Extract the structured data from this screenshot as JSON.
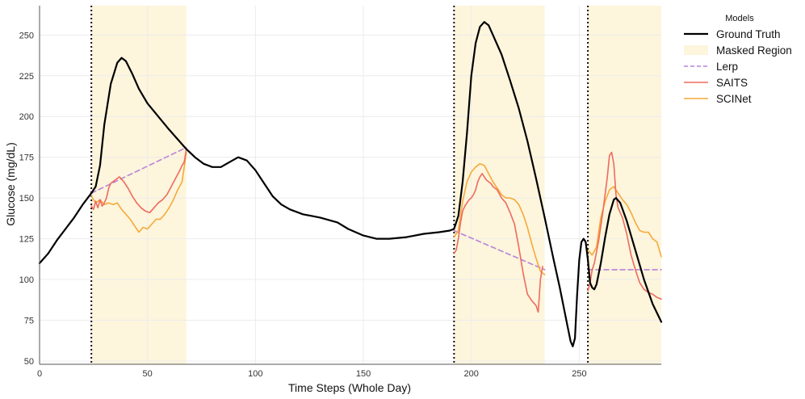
{
  "chart_data": {
    "type": "line",
    "title": "",
    "xlabel": "Time Steps (Whole Day)",
    "ylabel": "Glucose (mg/dL)",
    "xlim": [
      0,
      288
    ],
    "ylim": [
      48,
      268
    ],
    "x_ticks": [
      0,
      50,
      100,
      150,
      200,
      250
    ],
    "y_ticks": [
      50,
      75,
      100,
      125,
      150,
      175,
      200,
      225,
      250
    ],
    "grid": true,
    "legend": {
      "title": "Models",
      "position": "outside-right"
    },
    "mask_boundaries": [
      24,
      192,
      254
    ],
    "masked_regions": [
      [
        24,
        68
      ],
      [
        192,
        234
      ],
      [
        254,
        288
      ]
    ],
    "colors": {
      "ground_truth": "#000000",
      "masked_region": "#fdf5dc",
      "lerp": "#b784d8",
      "saits": "#ee6b5f",
      "scinet": "#f5aa3c"
    },
    "series": [
      {
        "name": "Ground Truth",
        "style": "solid",
        "points": [
          [
            0,
            110
          ],
          [
            4,
            116
          ],
          [
            8,
            124
          ],
          [
            12,
            131
          ],
          [
            16,
            138
          ],
          [
            20,
            146
          ],
          [
            24,
            153
          ],
          [
            26,
            157
          ],
          [
            28,
            170
          ],
          [
            30,
            195
          ],
          [
            33,
            220
          ],
          [
            36,
            233
          ],
          [
            38,
            236
          ],
          [
            40,
            234
          ],
          [
            43,
            226
          ],
          [
            46,
            217
          ],
          [
            50,
            208
          ],
          [
            55,
            200
          ],
          [
            60,
            192
          ],
          [
            64,
            186
          ],
          [
            68,
            180
          ],
          [
            72,
            175
          ],
          [
            76,
            171
          ],
          [
            80,
            169
          ],
          [
            84,
            169
          ],
          [
            88,
            172
          ],
          [
            92,
            175
          ],
          [
            96,
            173
          ],
          [
            100,
            167
          ],
          [
            104,
            159
          ],
          [
            108,
            151
          ],
          [
            112,
            146
          ],
          [
            116,
            143
          ],
          [
            122,
            140
          ],
          [
            130,
            138
          ],
          [
            138,
            135
          ],
          [
            143,
            131
          ],
          [
            150,
            127
          ],
          [
            156,
            125
          ],
          [
            162,
            125
          ],
          [
            170,
            126
          ],
          [
            178,
            128
          ],
          [
            185,
            129
          ],
          [
            190,
            130
          ],
          [
            192,
            131
          ],
          [
            194,
            139
          ],
          [
            196,
            160
          ],
          [
            198,
            190
          ],
          [
            200,
            225
          ],
          [
            202,
            245
          ],
          [
            204,
            255
          ],
          [
            206,
            258
          ],
          [
            208,
            256
          ],
          [
            210,
            250
          ],
          [
            214,
            238
          ],
          [
            218,
            222
          ],
          [
            222,
            205
          ],
          [
            226,
            185
          ],
          [
            230,
            162
          ],
          [
            234,
            138
          ],
          [
            238,
            113
          ],
          [
            241,
            95
          ],
          [
            244,
            75
          ],
          [
            246,
            62
          ],
          [
            247,
            59
          ],
          [
            248,
            64
          ],
          [
            249,
            90
          ],
          [
            250,
            112
          ],
          [
            251,
            123
          ],
          [
            252,
            125
          ],
          [
            253,
            123
          ],
          [
            254,
            112
          ],
          [
            255,
            98
          ],
          [
            256,
            95
          ],
          [
            257,
            94
          ],
          [
            258,
            97
          ],
          [
            260,
            110
          ],
          [
            262,
            126
          ],
          [
            264,
            140
          ],
          [
            266,
            149
          ],
          [
            267,
            150
          ],
          [
            269,
            147
          ],
          [
            272,
            136
          ],
          [
            276,
            118
          ],
          [
            280,
            100
          ],
          [
            284,
            85
          ],
          [
            288,
            74
          ]
        ]
      },
      {
        "name": "Lerp",
        "style": "dashed",
        "segments": [
          [
            [
              24,
              153
            ],
            [
              68,
              181
            ]
          ],
          [
            [
              192,
              130
            ],
            [
              234,
              106
            ]
          ],
          [
            [
              254,
              106
            ],
            [
              288,
              106
            ]
          ]
        ]
      },
      {
        "name": "SAITS",
        "style": "solid",
        "segments": [
          [
            [
              24,
              145
            ],
            [
              25,
              143
            ],
            [
              26,
              148
            ],
            [
              27,
              144
            ],
            [
              28,
              149
            ],
            [
              29,
              145
            ],
            [
              30,
              147
            ],
            [
              31,
              150
            ],
            [
              32,
              156
            ],
            [
              33,
              159
            ],
            [
              35,
              161
            ],
            [
              37,
              163
            ],
            [
              39,
              160
            ],
            [
              41,
              156
            ],
            [
              43,
              151
            ],
            [
              45,
              147
            ],
            [
              47,
              144
            ],
            [
              49,
              142
            ],
            [
              51,
              141
            ],
            [
              53,
              144
            ],
            [
              55,
              147
            ],
            [
              57,
              149
            ],
            [
              59,
              152
            ],
            [
              61,
              157
            ],
            [
              63,
              162
            ],
            [
              65,
              167
            ],
            [
              66,
              170
            ],
            [
              67,
              172
            ],
            [
              68,
              180
            ]
          ],
          [
            [
              192,
              116
            ],
            [
              193,
              118
            ],
            [
              194,
              125
            ],
            [
              195,
              135
            ],
            [
              196,
              142
            ],
            [
              197,
              145
            ],
            [
              198,
              147
            ],
            [
              199,
              149
            ],
            [
              200,
              150
            ],
            [
              201,
              152
            ],
            [
              202,
              155
            ],
            [
              203,
              160
            ],
            [
              204,
              163
            ],
            [
              205,
              165
            ],
            [
              206,
              163
            ],
            [
              207,
              161
            ],
            [
              208,
              160
            ],
            [
              209,
              159
            ],
            [
              210,
              157
            ],
            [
              212,
              155
            ],
            [
              214,
              150
            ],
            [
              216,
              147
            ],
            [
              218,
              141
            ],
            [
              220,
              134
            ],
            [
              222,
              120
            ],
            [
              224,
              104
            ],
            [
              226,
              91
            ],
            [
              228,
              87
            ],
            [
              230,
              84
            ],
            [
              231,
              80
            ],
            [
              232,
              100
            ],
            [
              233,
              108
            ]
          ],
          [
            [
              254,
              93
            ],
            [
              255,
              98
            ],
            [
              256,
              106
            ],
            [
              257,
              110
            ],
            [
              259,
              124
            ],
            [
              261,
              142
            ],
            [
              263,
              163
            ],
            [
              264,
              176
            ],
            [
              265,
              178
            ],
            [
              266,
              171
            ],
            [
              267,
              152
            ],
            [
              268,
              144
            ],
            [
              270,
              138
            ],
            [
              272,
              128
            ],
            [
              274,
              115
            ],
            [
              276,
              106
            ],
            [
              278,
              98
            ],
            [
              280,
              94
            ],
            [
              282,
              92
            ],
            [
              284,
              91
            ],
            [
              286,
              89
            ],
            [
              288,
              88
            ]
          ]
        ]
      },
      {
        "name": "SCINet",
        "style": "solid",
        "segments": [
          [
            [
              24,
              151
            ],
            [
              26,
              147
            ],
            [
              28,
              149
            ],
            [
              30,
              146
            ],
            [
              32,
              147
            ],
            [
              34,
              146
            ],
            [
              36,
              147
            ],
            [
              38,
              143
            ],
            [
              40,
              140
            ],
            [
              42,
              137
            ],
            [
              44,
              133
            ],
            [
              46,
              129
            ],
            [
              48,
              132
            ],
            [
              50,
              131
            ],
            [
              52,
              134
            ],
            [
              54,
              137
            ],
            [
              56,
              137
            ],
            [
              58,
              140
            ],
            [
              60,
              144
            ],
            [
              62,
              149
            ],
            [
              64,
              155
            ],
            [
              66,
              160
            ],
            [
              68,
              178
            ]
          ],
          [
            [
              192,
              126
            ],
            [
              194,
              130
            ],
            [
              196,
              148
            ],
            [
              198,
              160
            ],
            [
              200,
              166
            ],
            [
              202,
              169
            ],
            [
              204,
              171
            ],
            [
              206,
              170
            ],
            [
              208,
              165
            ],
            [
              210,
              160
            ],
            [
              212,
              156
            ],
            [
              214,
              152
            ],
            [
              216,
              150
            ],
            [
              218,
              150
            ],
            [
              220,
              149
            ],
            [
              222,
              146
            ],
            [
              224,
              140
            ],
            [
              226,
              132
            ],
            [
              228,
              122
            ],
            [
              230,
              113
            ],
            [
              232,
              105
            ],
            [
              234,
              103
            ]
          ],
          [
            [
              254,
              118
            ],
            [
              256,
              115
            ],
            [
              258,
              120
            ],
            [
              260,
              138
            ],
            [
              262,
              148
            ],
            [
              264,
              155
            ],
            [
              266,
              157
            ],
            [
              268,
              153
            ],
            [
              270,
              149
            ],
            [
              272,
              146
            ],
            [
              274,
              141
            ],
            [
              276,
              135
            ],
            [
              278,
              130
            ],
            [
              280,
              129
            ],
            [
              282,
              129
            ],
            [
              284,
              125
            ],
            [
              286,
              123
            ],
            [
              288,
              114
            ]
          ]
        ]
      }
    ]
  }
}
